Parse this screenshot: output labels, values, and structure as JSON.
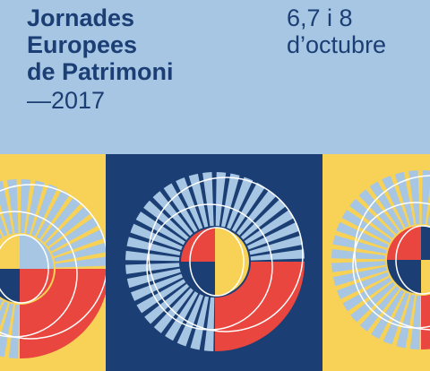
{
  "header": {
    "title": [
      "Jornades",
      "Europees",
      "de Patrimoni"
    ],
    "year": "—2017",
    "dates": [
      "6,7 i 8",
      "d’octubre"
    ]
  }
}
